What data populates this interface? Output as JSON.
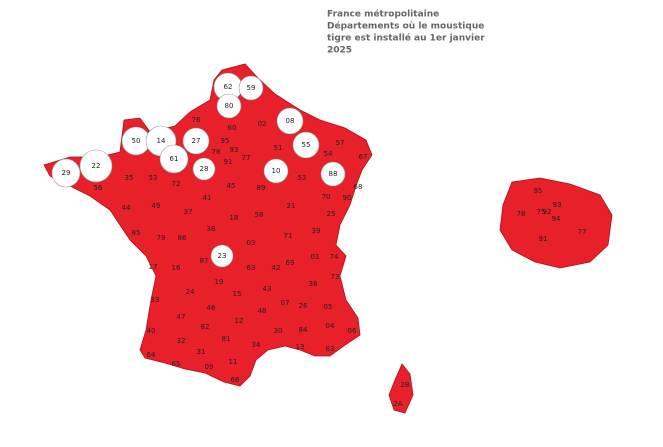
{
  "map": {
    "title_lines": [
      "France métropolitaine",
      "Départements où le moustique",
      "tigre est installé au 1er janvier",
      "2025"
    ],
    "installed_color": "#e8202a",
    "not_installed_color": "#ffffff",
    "departments": [
      {
        "code": "62",
        "installed": false
      },
      {
        "code": "59",
        "installed": false
      },
      {
        "code": "80",
        "installed": false
      },
      {
        "code": "76",
        "installed": true
      },
      {
        "code": "60",
        "installed": true
      },
      {
        "code": "02",
        "installed": true
      },
      {
        "code": "08",
        "installed": false
      },
      {
        "code": "50",
        "installed": false
      },
      {
        "code": "14",
        "installed": false
      },
      {
        "code": "27",
        "installed": false
      },
      {
        "code": "95",
        "installed": true
      },
      {
        "code": "93",
        "installed": true
      },
      {
        "code": "78",
        "installed": true
      },
      {
        "code": "51",
        "installed": true
      },
      {
        "code": "55",
        "installed": false
      },
      {
        "code": "57",
        "installed": true
      },
      {
        "code": "67",
        "installed": true
      },
      {
        "code": "54",
        "installed": true
      },
      {
        "code": "61",
        "installed": false
      },
      {
        "code": "22",
        "installed": false
      },
      {
        "code": "29",
        "installed": false
      },
      {
        "code": "28",
        "installed": false
      },
      {
        "code": "91",
        "installed": true
      },
      {
        "code": "77",
        "installed": true
      },
      {
        "code": "10",
        "installed": false
      },
      {
        "code": "88",
        "installed": false
      },
      {
        "code": "56",
        "installed": true
      },
      {
        "code": "35",
        "installed": true
      },
      {
        "code": "53",
        "installed": true
      },
      {
        "code": "72",
        "installed": true
      },
      {
        "code": "45",
        "installed": true
      },
      {
        "code": "89",
        "installed": true
      },
      {
        "code": "52",
        "installed": true
      },
      {
        "code": "70",
        "installed": true
      },
      {
        "code": "68",
        "installed": true
      },
      {
        "code": "90",
        "installed": true
      },
      {
        "code": "44",
        "installed": true
      },
      {
        "code": "49",
        "installed": true
      },
      {
        "code": "37",
        "installed": true
      },
      {
        "code": "41",
        "installed": true
      },
      {
        "code": "21",
        "installed": true
      },
      {
        "code": "25",
        "installed": true
      },
      {
        "code": "85",
        "installed": true
      },
      {
        "code": "79",
        "installed": true
      },
      {
        "code": "86",
        "installed": true
      },
      {
        "code": "36",
        "installed": true
      },
      {
        "code": "18",
        "installed": true
      },
      {
        "code": "58",
        "installed": true
      },
      {
        "code": "71",
        "installed": true
      },
      {
        "code": "39",
        "installed": true
      },
      {
        "code": "17",
        "installed": true
      },
      {
        "code": "16",
        "installed": true
      },
      {
        "code": "87",
        "installed": true
      },
      {
        "code": "23",
        "installed": false
      },
      {
        "code": "03",
        "installed": true
      },
      {
        "code": "69",
        "installed": true
      },
      {
        "code": "74",
        "installed": true
      },
      {
        "code": "01",
        "installed": true
      },
      {
        "code": "63",
        "installed": true
      },
      {
        "code": "42",
        "installed": true
      },
      {
        "code": "19",
        "installed": true
      },
      {
        "code": "24",
        "installed": true
      },
      {
        "code": "15",
        "installed": true
      },
      {
        "code": "43",
        "installed": true
      },
      {
        "code": "38",
        "installed": true
      },
      {
        "code": "73",
        "installed": true
      },
      {
        "code": "33",
        "installed": true
      },
      {
        "code": "46",
        "installed": true
      },
      {
        "code": "07",
        "installed": true
      },
      {
        "code": "26",
        "installed": true
      },
      {
        "code": "05",
        "installed": true
      },
      {
        "code": "47",
        "installed": true
      },
      {
        "code": "12",
        "installed": true
      },
      {
        "code": "48",
        "installed": true
      },
      {
        "code": "30",
        "installed": true
      },
      {
        "code": "84",
        "installed": true
      },
      {
        "code": "04",
        "installed": true
      },
      {
        "code": "06",
        "installed": true
      },
      {
        "code": "40",
        "installed": true
      },
      {
        "code": "82",
        "installed": true
      },
      {
        "code": "81",
        "installed": true
      },
      {
        "code": "13",
        "installed": true
      },
      {
        "code": "83",
        "installed": true
      },
      {
        "code": "32",
        "installed": true
      },
      {
        "code": "34",
        "installed": true
      },
      {
        "code": "64",
        "installed": true
      },
      {
        "code": "31",
        "installed": true
      },
      {
        "code": "65",
        "installed": true
      },
      {
        "code": "09",
        "installed": true
      },
      {
        "code": "11",
        "installed": true
      },
      {
        "code": "66",
        "installed": true
      },
      {
        "code": "2B",
        "installed": true
      },
      {
        "code": "2A",
        "installed": true
      }
    ],
    "inset_departments": [
      {
        "code": "95",
        "installed": true
      },
      {
        "code": "93",
        "installed": true
      },
      {
        "code": "78",
        "installed": true
      },
      {
        "code": "75",
        "installed": true
      },
      {
        "code": "92",
        "installed": true
      },
      {
        "code": "94",
        "installed": true
      },
      {
        "code": "91",
        "installed": true
      },
      {
        "code": "77",
        "installed": true
      }
    ]
  }
}
